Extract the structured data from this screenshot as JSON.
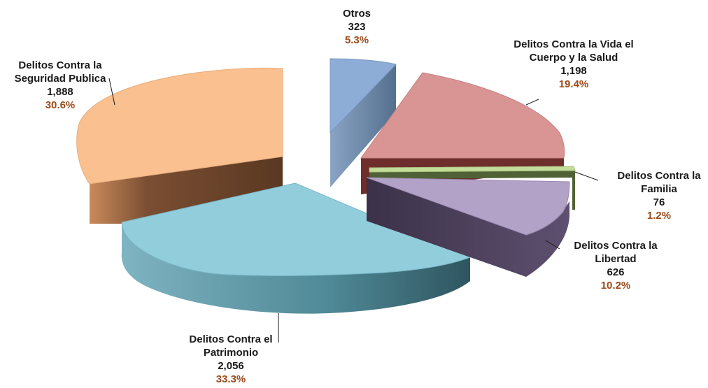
{
  "chart_data": {
    "type": "pie",
    "title": "",
    "slices": [
      {
        "name": "Otros",
        "value": 323,
        "percent": "5.3%",
        "value_label": "323",
        "color": "#8eadd6",
        "side_color": "#6f88a8",
        "exploded": true
      },
      {
        "name": "Delitos Contra la Vida el Cuerpo y la Salud",
        "value": 1198,
        "percent": "19.4%",
        "value_label": "1,198",
        "color": "#d99594",
        "side_color": "#8a3b3a"
      },
      {
        "name": "Delitos Contra la Familia",
        "value": 76,
        "percent": "1.2%",
        "value_label": "76",
        "color": "#c4dc9b",
        "side_color": "#5e7340"
      },
      {
        "name": "Delitos Contra la Libertad",
        "value": 626,
        "percent": "10.2%",
        "value_label": "626",
        "color": "#b3a2c7",
        "side_color": "#4b3f5a"
      },
      {
        "name": "Delitos Contra el Patrimonio",
        "value": 2056,
        "percent": "33.3%",
        "value_label": "2,056",
        "color": "#92cddc",
        "side_color": "#3f6f7a"
      },
      {
        "name": "Delitos Contra la Seguridad Publica",
        "value": 1888,
        "percent": "30.6%",
        "value_label": "1,888",
        "color": "#fac090",
        "side_color": "#7a4e32"
      }
    ]
  },
  "labels": {
    "otros": {
      "line1": "Otros",
      "line2": "",
      "value": "323",
      "pct": "5.3%"
    },
    "vida": {
      "line1": "Delitos Contra la Vida el",
      "line2": "Cuerpo y la Salud",
      "value": "1,198",
      "pct": "19.4%"
    },
    "familia": {
      "line1": "Delitos Contra la",
      "line2": "Familia",
      "value": "76",
      "pct": "1.2%"
    },
    "libertad": {
      "line1": "Delitos Contra la",
      "line2": "Libertad",
      "value": "626",
      "pct": "10.2%"
    },
    "patrimonio": {
      "line1": "Delitos Contra el",
      "line2": "Patrimonio",
      "value": "2,056",
      "pct": "33.3%"
    },
    "seguridad": {
      "line1": "Delitos Contra la",
      "line2": "Seguridad Publica",
      "value": "1,888",
      "pct": "30.6%"
    }
  }
}
